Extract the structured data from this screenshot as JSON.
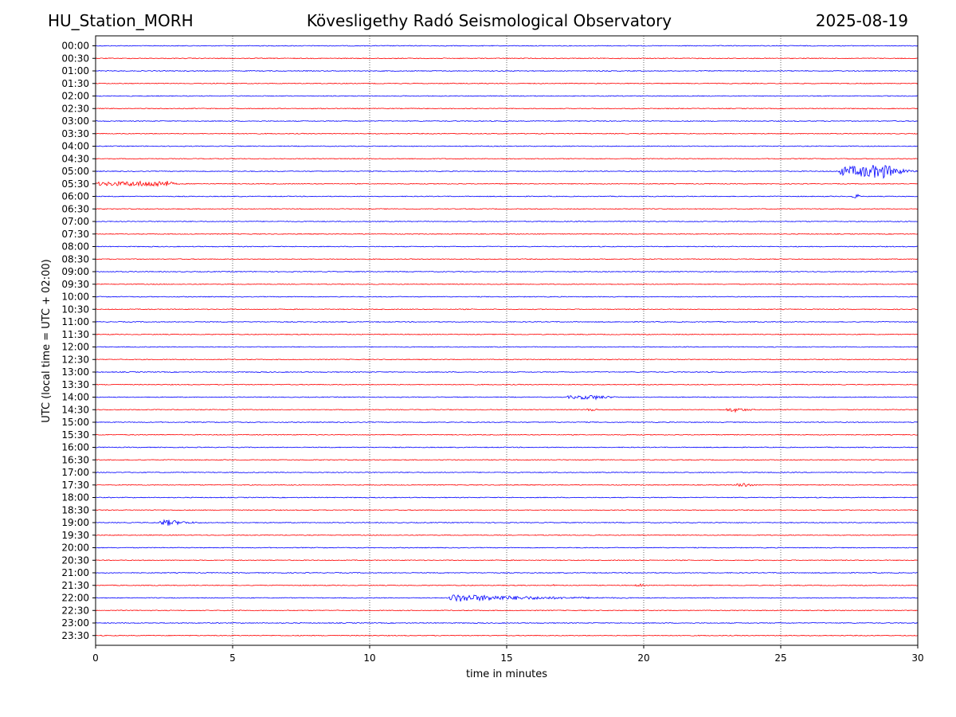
{
  "header": {
    "station": "HU_Station_MORH",
    "observatory": "Kövesligethy Radó Seismological Observatory",
    "date": "2025-08-19"
  },
  "chart_data": {
    "type": "line",
    "title": "Kövesligethy Radó Seismological Observatory",
    "xlabel": "time in minutes",
    "ylabel": "UTC (local time = UTC + 02:00)",
    "xlim": [
      0,
      30
    ],
    "x_ticks": [
      "0",
      "5",
      "10",
      "15",
      "20",
      "25",
      "30"
    ],
    "x_grid": "dotted",
    "y_tick_labels": [
      "00:00",
      "00:30",
      "01:00",
      "01:30",
      "02:00",
      "02:30",
      "03:00",
      "03:30",
      "04:00",
      "04:30",
      "05:00",
      "05:30",
      "06:00",
      "06:30",
      "07:00",
      "07:30",
      "08:00",
      "08:30",
      "09:00",
      "09:30",
      "10:00",
      "10:30",
      "11:00",
      "11:30",
      "12:00",
      "12:30",
      "13:00",
      "13:30",
      "14:00",
      "14:30",
      "15:00",
      "15:30",
      "16:00",
      "16:30",
      "17:00",
      "17:30",
      "18:00",
      "18:30",
      "19:00",
      "19:30",
      "20:00",
      "20:30",
      "21:00",
      "21:30",
      "22:00",
      "22:30",
      "23:00",
      "23:30"
    ],
    "trace_colors": [
      "#0000ff",
      "#ff0000"
    ],
    "baseline_noise_amplitude": 0.5,
    "events": [
      {
        "trace": "05:00",
        "start_min": 27.1,
        "end_min": 30.0,
        "peak_min": 28.8,
        "amplitude": 9
      },
      {
        "trace": "05:30",
        "start_min": 0.0,
        "end_min": 3.2,
        "peak_min": 2.6,
        "amplitude": 4
      },
      {
        "trace": "06:00",
        "start_min": 27.6,
        "end_min": 28.0,
        "peak_min": 27.8,
        "amplitude": 3
      },
      {
        "trace": "14:00",
        "start_min": 17.2,
        "end_min": 19.5,
        "peak_min": 18.2,
        "amplitude": 3
      },
      {
        "trace": "14:30",
        "start_min": 17.9,
        "end_min": 18.5,
        "peak_min": 18.2,
        "amplitude": 2
      },
      {
        "trace": "14:30",
        "start_min": 23.0,
        "end_min": 24.5,
        "peak_min": 23.3,
        "amplitude": 3
      },
      {
        "trace": "17:30",
        "start_min": 23.4,
        "end_min": 24.3,
        "peak_min": 23.7,
        "amplitude": 3
      },
      {
        "trace": "19:00",
        "start_min": 2.3,
        "end_min": 4.2,
        "peak_min": 2.6,
        "amplitude": 4
      },
      {
        "trace": "21:30",
        "start_min": 16.7,
        "end_min": 16.8,
        "peak_min": 16.7,
        "amplitude": 3
      },
      {
        "trace": "21:30",
        "start_min": 19.7,
        "end_min": 20.2,
        "peak_min": 19.9,
        "amplitude": 2
      },
      {
        "trace": "22:00",
        "start_min": 12.9,
        "end_min": 19.8,
        "peak_min": 13.1,
        "amplitude": 5
      }
    ]
  }
}
